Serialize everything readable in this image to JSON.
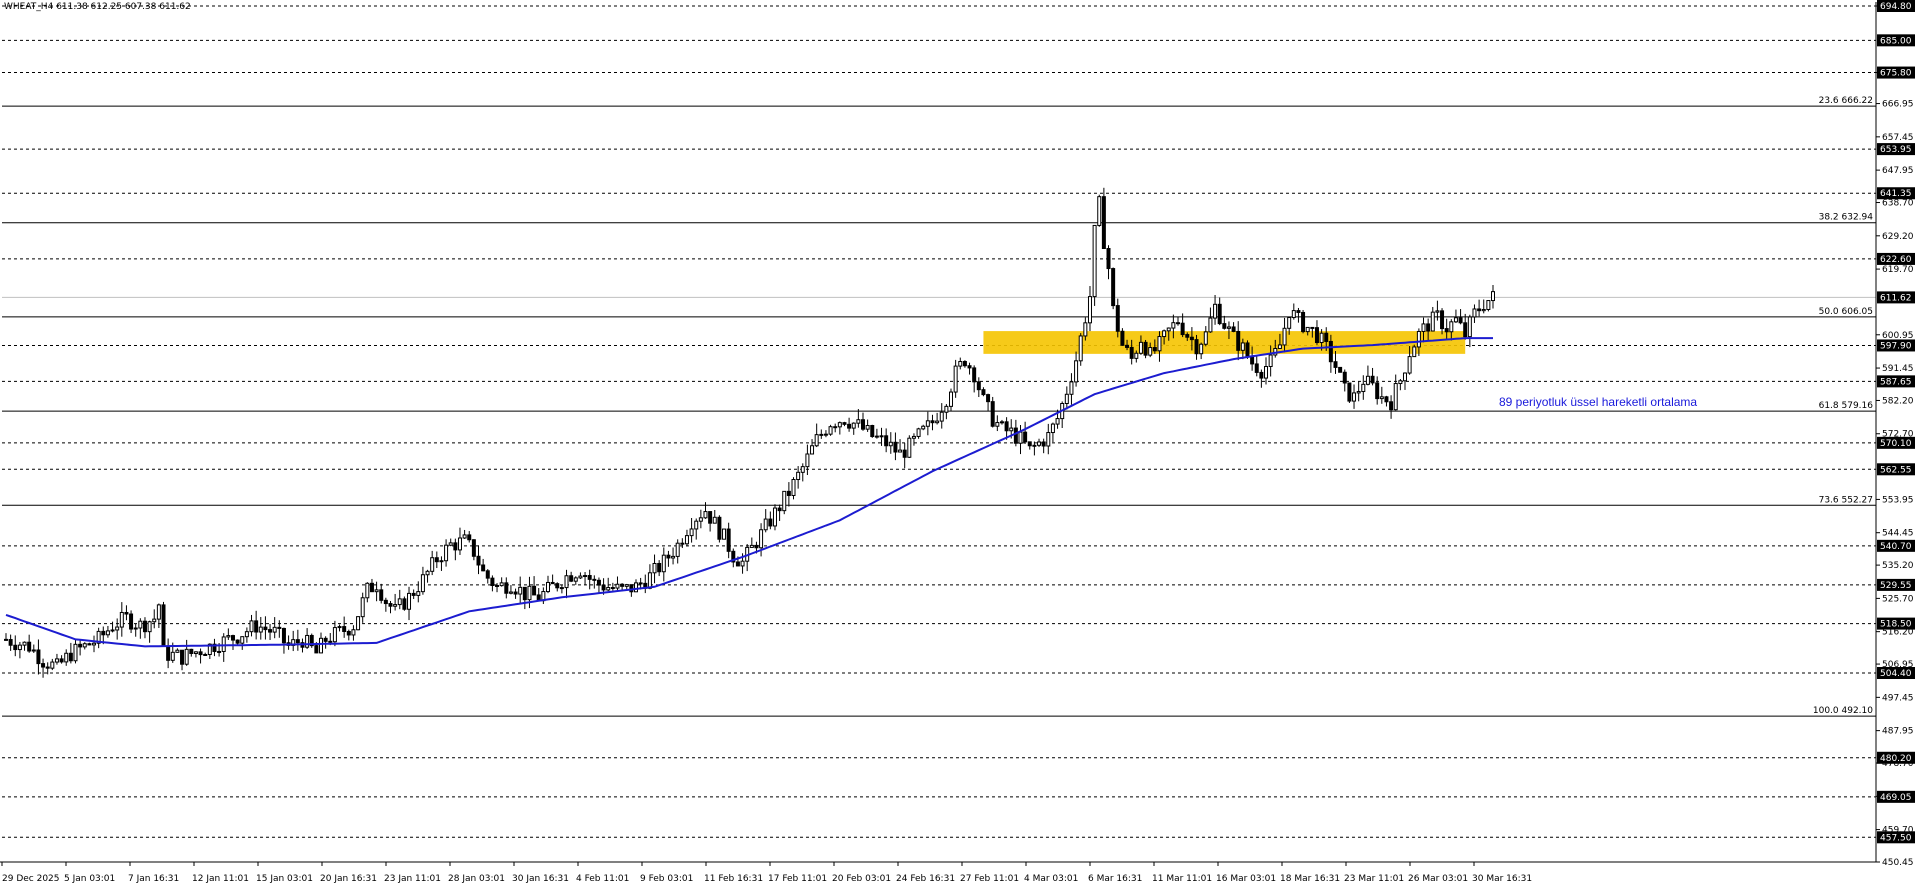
{
  "header": {
    "symbol": "WHEAT_H4",
    "ohlc": "611.38 612.25 607.38 611.62"
  },
  "annotation": {
    "ema_label": "89 periyotluk üssel hareketli ortalama"
  },
  "colors": {
    "background": "#ffffff",
    "candle": "#000000",
    "ema": "#1c1cd0",
    "support_zone": "#f5c400",
    "grid_dotted": "#000000",
    "price_tag_bg": "#000000",
    "price_tag_text": "#ffffff"
  },
  "chart_data": {
    "type": "candlestick",
    "timeframe": "H4",
    "y_axis": {
      "ylim": [
        450.45,
        694.8
      ],
      "tick_labels": [
        "694.80",
        "675.80",
        "666.95",
        "657.45",
        "647.95",
        "638.70",
        "629.20",
        "619.70",
        "600.95",
        "591.45",
        "582.20",
        "572.70",
        "553.95",
        "544.45",
        "535.20",
        "525.70",
        "516.20",
        "506.95",
        "497.45",
        "487.95",
        "478.70",
        "469.20",
        "459.70",
        "450.45"
      ]
    },
    "x_axis": {
      "tick_labels": [
        "29 Dec 2025",
        "5 Jan 03:01",
        "7 Jan 16:31",
        "12 Jan 11:01",
        "15 Jan 03:01",
        "20 Jan 16:31",
        "23 Jan 11:01",
        "28 Jan 03:01",
        "30 Jan 16:31",
        "4 Feb 11:01",
        "9 Feb 03:01",
        "11 Feb 16:31",
        "17 Feb 11:01",
        "20 Feb 03:01",
        "24 Feb 16:31",
        "27 Feb 11:01",
        "4 Mar 03:01",
        "6 Mar 16:31",
        "11 Mar 11:01",
        "16 Mar 03:01",
        "18 Mar 16:31",
        "23 Mar 11:01",
        "26 Mar 03:01",
        "30 Mar 16:31"
      ]
    },
    "horizontal_levels": [
      "694.80",
      "685.00",
      "675.80",
      "653.95",
      "641.35",
      "622.60",
      "597.90",
      "587.65",
      "570.10",
      "562.55",
      "540.70",
      "529.55",
      "518.50",
      "504.40",
      "480.20",
      "469.05",
      "457.50"
    ],
    "current_price": "611.62",
    "fibonacci_levels": [
      {
        "ratio": "23.6",
        "price": "666.22"
      },
      {
        "ratio": "38.2",
        "price": "632.94"
      },
      {
        "ratio": "50.0",
        "price": "606.05"
      },
      {
        "ratio": "61.8",
        "price": "579.16"
      },
      {
        "ratio": "73.6",
        "price": "552.27"
      },
      {
        "ratio": "100.0",
        "price": "492.10"
      }
    ],
    "support_zone": {
      "low": 595.5,
      "high": 602.0,
      "x_start": "6 Mar 03:01",
      "x_end": "30 Mar 23:01"
    },
    "close_path": [
      {
        "t": 0,
        "c": 514
      },
      {
        "t": 5,
        "c": 512
      },
      {
        "t": 8,
        "c": 508
      },
      {
        "t": 11,
        "c": 506
      },
      {
        "t": 14,
        "c": 510
      },
      {
        "t": 17,
        "c": 512
      },
      {
        "t": 20,
        "c": 514
      },
      {
        "t": 23,
        "c": 518
      },
      {
        "t": 26,
        "c": 520
      },
      {
        "t": 29,
        "c": 518
      },
      {
        "t": 32,
        "c": 520
      },
      {
        "t": 33,
        "c": 524
      },
      {
        "t": 34,
        "c": 510
      },
      {
        "t": 38,
        "c": 509
      },
      {
        "t": 42,
        "c": 511
      },
      {
        "t": 46,
        "c": 513
      },
      {
        "t": 50,
        "c": 515
      },
      {
        "t": 54,
        "c": 518
      },
      {
        "t": 58,
        "c": 516
      },
      {
        "t": 61,
        "c": 512
      },
      {
        "t": 64,
        "c": 514
      },
      {
        "t": 67,
        "c": 510
      },
      {
        "t": 69,
        "c": 514
      },
      {
        "t": 72,
        "c": 516
      },
      {
        "t": 75,
        "c": 518
      },
      {
        "t": 78,
        "c": 528
      },
      {
        "t": 80,
        "c": 530
      },
      {
        "t": 82,
        "c": 525
      },
      {
        "t": 84,
        "c": 522
      },
      {
        "t": 87,
        "c": 526
      },
      {
        "t": 90,
        "c": 531
      },
      {
        "t": 93,
        "c": 537
      },
      {
        "t": 96,
        "c": 541
      },
      {
        "t": 99,
        "c": 542
      },
      {
        "t": 101,
        "c": 539
      },
      {
        "t": 103,
        "c": 533
      },
      {
        "t": 106,
        "c": 529
      },
      {
        "t": 109,
        "c": 530
      },
      {
        "t": 112,
        "c": 527
      },
      {
        "t": 115,
        "c": 526
      },
      {
        "t": 118,
        "c": 529
      },
      {
        "t": 121,
        "c": 532
      },
      {
        "t": 124,
        "c": 534
      },
      {
        "t": 127,
        "c": 530
      },
      {
        "t": 130,
        "c": 529
      },
      {
        "t": 133,
        "c": 528
      },
      {
        "t": 136,
        "c": 529
      },
      {
        "t": 139,
        "c": 532
      },
      {
        "t": 142,
        "c": 536
      },
      {
        "t": 145,
        "c": 541
      },
      {
        "t": 148,
        "c": 548
      },
      {
        "t": 151,
        "c": 551
      },
      {
        "t": 153,
        "c": 547
      },
      {
        "t": 155,
        "c": 543
      },
      {
        "t": 157,
        "c": 538
      },
      {
        "t": 159,
        "c": 536
      },
      {
        "t": 161,
        "c": 540
      },
      {
        "t": 163,
        "c": 544
      },
      {
        "t": 166,
        "c": 550
      },
      {
        "t": 169,
        "c": 556
      },
      {
        "t": 172,
        "c": 563
      },
      {
        "t": 175,
        "c": 571
      },
      {
        "t": 178,
        "c": 576
      },
      {
        "t": 181,
        "c": 577
      },
      {
        "t": 184,
        "c": 575
      },
      {
        "t": 187,
        "c": 572
      },
      {
        "t": 190,
        "c": 570
      },
      {
        "t": 193,
        "c": 567
      },
      {
        "t": 195,
        "c": 569
      },
      {
        "t": 197,
        "c": 572
      },
      {
        "t": 200,
        "c": 576
      },
      {
        "t": 203,
        "c": 583
      },
      {
        "t": 205,
        "c": 590
      },
      {
        "t": 207,
        "c": 594
      },
      {
        "t": 209,
        "c": 590
      },
      {
        "t": 211,
        "c": 582
      },
      {
        "t": 213,
        "c": 577
      },
      {
        "t": 215,
        "c": 574
      },
      {
        "t": 217,
        "c": 573
      },
      {
        "t": 219,
        "c": 571
      },
      {
        "t": 221,
        "c": 568
      },
      {
        "t": 223,
        "c": 570
      },
      {
        "t": 225,
        "c": 572
      },
      {
        "t": 227,
        "c": 577
      },
      {
        "t": 229,
        "c": 585
      },
      {
        "t": 231,
        "c": 594
      },
      {
        "t": 233,
        "c": 606
      },
      {
        "t": 234,
        "c": 612
      },
      {
        "t": 235,
        "c": 630
      },
      {
        "t": 236,
        "c": 638
      },
      {
        "t": 237,
        "c": 628
      },
      {
        "t": 238,
        "c": 620
      },
      {
        "t": 239,
        "c": 608
      },
      {
        "t": 241,
        "c": 598
      },
      {
        "t": 243,
        "c": 594
      },
      {
        "t": 245,
        "c": 600
      },
      {
        "t": 247,
        "c": 595
      },
      {
        "t": 249,
        "c": 598
      },
      {
        "t": 251,
        "c": 602
      },
      {
        "t": 253,
        "c": 605
      },
      {
        "t": 255,
        "c": 601
      },
      {
        "t": 257,
        "c": 598
      },
      {
        "t": 259,
        "c": 601
      },
      {
        "t": 261,
        "c": 609
      },
      {
        "t": 263,
        "c": 604
      },
      {
        "t": 265,
        "c": 600
      },
      {
        "t": 267,
        "c": 597
      },
      {
        "t": 269,
        "c": 593
      },
      {
        "t": 271,
        "c": 591
      },
      {
        "t": 273,
        "c": 593
      },
      {
        "t": 275,
        "c": 598
      },
      {
        "t": 277,
        "c": 608
      },
      {
        "t": 279,
        "c": 605
      },
      {
        "t": 281,
        "c": 603
      },
      {
        "t": 283,
        "c": 601
      },
      {
        "t": 285,
        "c": 597
      },
      {
        "t": 287,
        "c": 592
      },
      {
        "t": 289,
        "c": 585
      },
      {
        "t": 291,
        "c": 583
      },
      {
        "t": 293,
        "c": 588
      },
      {
        "t": 295,
        "c": 586
      },
      {
        "t": 297,
        "c": 583
      },
      {
        "t": 299,
        "c": 582
      },
      {
        "t": 301,
        "c": 588
      },
      {
        "t": 303,
        "c": 596
      },
      {
        "t": 305,
        "c": 601
      },
      {
        "t": 307,
        "c": 604
      },
      {
        "t": 309,
        "c": 606
      },
      {
        "t": 311,
        "c": 603
      },
      {
        "t": 313,
        "c": 605
      },
      {
        "t": 315,
        "c": 601
      },
      {
        "t": 317,
        "c": 607
      },
      {
        "t": 319,
        "c": 610
      },
      {
        "t": 321,
        "c": 611.62
      }
    ],
    "ema_path": [
      {
        "t": 0,
        "v": 521
      },
      {
        "t": 15,
        "v": 514
      },
      {
        "t": 30,
        "v": 512
      },
      {
        "t": 60,
        "v": 512.5
      },
      {
        "t": 80,
        "v": 513
      },
      {
        "t": 100,
        "v": 522
      },
      {
        "t": 120,
        "v": 526
      },
      {
        "t": 140,
        "v": 529
      },
      {
        "t": 160,
        "v": 538
      },
      {
        "t": 180,
        "v": 548
      },
      {
        "t": 200,
        "v": 562
      },
      {
        "t": 220,
        "v": 574
      },
      {
        "t": 235,
        "v": 584
      },
      {
        "t": 250,
        "v": 590
      },
      {
        "t": 265,
        "v": 594
      },
      {
        "t": 280,
        "v": 597
      },
      {
        "t": 295,
        "v": 598
      },
      {
        "t": 305,
        "v": 599
      },
      {
        "t": 315,
        "v": 600
      },
      {
        "t": 321,
        "v": 600
      }
    ]
  }
}
